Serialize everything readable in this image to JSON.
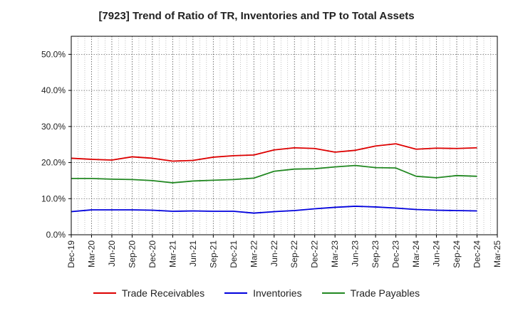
{
  "chart_data": {
    "type": "line",
    "title": "[7923]  Trend of Ratio of TR, Inventories and TP to Total Assets",
    "x_ticks": [
      "Dec-19",
      "Mar-20",
      "Jun-20",
      "Sep-20",
      "Dec-20",
      "Mar-21",
      "Jun-21",
      "Sep-21",
      "Dec-21",
      "Mar-22",
      "Jun-22",
      "Sep-22",
      "Dec-22",
      "Mar-23",
      "Jun-23",
      "Sep-23",
      "Dec-23",
      "Mar-24",
      "Jun-24",
      "Sep-24",
      "Dec-24",
      "Mar-25"
    ],
    "x": [
      "Dec-19",
      "Mar-20",
      "Jun-20",
      "Sep-20",
      "Dec-20",
      "Mar-21",
      "Jun-21",
      "Sep-21",
      "Dec-21",
      "Mar-22",
      "Jun-22",
      "Sep-22",
      "Dec-22",
      "Mar-23",
      "Jun-23",
      "Sep-23",
      "Dec-23",
      "Mar-24",
      "Jun-24",
      "Sep-24",
      "Dec-24"
    ],
    "y_ticks": [
      "0.0%",
      "10.0%",
      "20.0%",
      "30.0%",
      "40.0%",
      "50.0%"
    ],
    "ylim": [
      0,
      55
    ],
    "grid": true,
    "legend_position": "bottom",
    "series": [
      {
        "name": "Trade Receivables",
        "color": "#dd0000",
        "values": [
          21.2,
          20.9,
          20.7,
          21.6,
          21.2,
          20.4,
          20.6,
          21.5,
          21.9,
          22.1,
          23.5,
          24.1,
          23.9,
          22.9,
          23.4,
          24.6,
          25.2,
          23.7,
          24.0,
          23.9,
          24.1
        ]
      },
      {
        "name": "Inventories",
        "color": "#0000dd",
        "values": [
          6.4,
          6.9,
          6.9,
          6.9,
          6.8,
          6.5,
          6.6,
          6.5,
          6.5,
          6.0,
          6.4,
          6.7,
          7.2,
          7.6,
          7.9,
          7.7,
          7.4,
          7.0,
          6.8,
          6.7,
          6.6
        ]
      },
      {
        "name": "Trade Payables",
        "color": "#228822",
        "values": [
          15.6,
          15.6,
          15.4,
          15.3,
          15.0,
          14.4,
          14.9,
          15.1,
          15.3,
          15.7,
          17.6,
          18.2,
          18.3,
          18.8,
          19.2,
          18.6,
          18.5,
          16.2,
          15.8,
          16.4,
          16.2
        ]
      }
    ]
  }
}
